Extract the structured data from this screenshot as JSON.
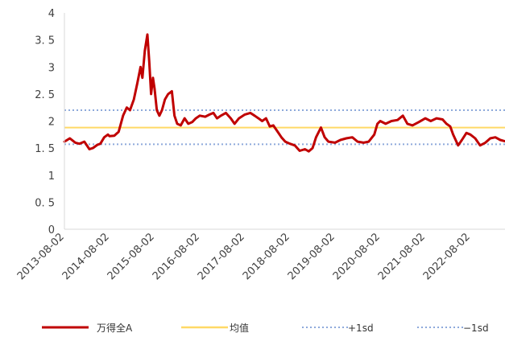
{
  "colors": {
    "series": "#C00000",
    "mean": "#FFD966",
    "plus_sd": "#8EA9DB",
    "minus_sd": "#8EA9DB",
    "axis": "#D9D9D9",
    "text": "#404040"
  },
  "chart_data": {
    "type": "line",
    "title": "",
    "xlabel": "",
    "ylabel": "",
    "ylim": [
      0,
      4
    ],
    "yticks": [
      "0",
      "0. 5",
      "1",
      "1. 5",
      "2",
      "2. 5",
      "3",
      "3. 5",
      "4"
    ],
    "xticks": [
      "2013-08-02",
      "2014-08-02",
      "2015-08-02",
      "2016-08-02",
      "2017-08-02",
      "2018-08-02",
      "2019-08-02",
      "2020-08-02",
      "2021-08-02",
      "2022-08-02"
    ],
    "xlim": [
      "2013-08-02",
      "2023-08-02"
    ],
    "grid": false,
    "legend_position": "bottom",
    "legend": [
      "万得全A",
      "均值",
      "+1sd",
      "−1sd"
    ],
    "reference_lines": [
      {
        "name": "均值",
        "value": 1.88,
        "style": "solid"
      },
      {
        "name": "+1sd",
        "value": 2.2,
        "style": "dotted"
      },
      {
        "name": "−1sd",
        "value": 1.57,
        "style": "dotted"
      }
    ],
    "series": [
      {
        "name": "万得全A",
        "points": [
          [
            "2013-08-02",
            1.62
          ],
          [
            "2013-09-15",
            1.68
          ],
          [
            "2013-10-30",
            1.6
          ],
          [
            "2013-12-01",
            1.58
          ],
          [
            "2014-01-10",
            1.62
          ],
          [
            "2014-02-20",
            1.48
          ],
          [
            "2014-03-20",
            1.5
          ],
          [
            "2014-04-25",
            1.56
          ],
          [
            "2014-05-20",
            1.58
          ],
          [
            "2014-06-20",
            1.7
          ],
          [
            "2014-07-20",
            1.75
          ],
          [
            "2014-08-02",
            1.72
          ],
          [
            "2014-09-10",
            1.73
          ],
          [
            "2014-10-15",
            1.8
          ],
          [
            "2014-11-20",
            2.1
          ],
          [
            "2014-12-20",
            2.25
          ],
          [
            "2015-01-15",
            2.2
          ],
          [
            "2015-02-15",
            2.4
          ],
          [
            "2015-03-15",
            2.7
          ],
          [
            "2015-04-10",
            3.0
          ],
          [
            "2015-04-25",
            2.8
          ],
          [
            "2015-05-15",
            3.3
          ],
          [
            "2015-06-05",
            3.6
          ],
          [
            "2015-06-20",
            3.1
          ],
          [
            "2015-07-05",
            2.5
          ],
          [
            "2015-07-20",
            2.8
          ],
          [
            "2015-08-02",
            2.6
          ],
          [
            "2015-08-20",
            2.2
          ],
          [
            "2015-09-10",
            2.1
          ],
          [
            "2015-10-01",
            2.2
          ],
          [
            "2015-10-25",
            2.4
          ],
          [
            "2015-11-20",
            2.5
          ],
          [
            "2015-12-20",
            2.55
          ],
          [
            "2016-01-10",
            2.1
          ],
          [
            "2016-02-01",
            1.95
          ],
          [
            "2016-03-01",
            1.92
          ],
          [
            "2016-04-01",
            2.05
          ],
          [
            "2016-05-01",
            1.95
          ],
          [
            "2016-06-01",
            1.98
          ],
          [
            "2016-07-01",
            2.05
          ],
          [
            "2016-08-02",
            2.1
          ],
          [
            "2016-09-15",
            2.08
          ],
          [
            "2016-10-20",
            2.12
          ],
          [
            "2016-11-20",
            2.15
          ],
          [
            "2016-12-20",
            2.05
          ],
          [
            "2017-01-20",
            2.1
          ],
          [
            "2017-03-01",
            2.15
          ],
          [
            "2017-04-10",
            2.05
          ],
          [
            "2017-05-10",
            1.95
          ],
          [
            "2017-06-15",
            2.05
          ],
          [
            "2017-08-02",
            2.12
          ],
          [
            "2017-09-15",
            2.15
          ],
          [
            "2017-10-20",
            2.1
          ],
          [
            "2017-11-20",
            2.05
          ],
          [
            "2017-12-20",
            2.0
          ],
          [
            "2018-01-20",
            2.05
          ],
          [
            "2018-02-20",
            1.9
          ],
          [
            "2018-03-20",
            1.92
          ],
          [
            "2018-04-25",
            1.8
          ],
          [
            "2018-05-25",
            1.7
          ],
          [
            "2018-06-25",
            1.62
          ],
          [
            "2018-08-02",
            1.58
          ],
          [
            "2018-09-10",
            1.55
          ],
          [
            "2018-10-20",
            1.45
          ],
          [
            "2018-12-01",
            1.48
          ],
          [
            "2019-01-01",
            1.44
          ],
          [
            "2019-02-01",
            1.5
          ],
          [
            "2019-03-01",
            1.7
          ],
          [
            "2019-04-10",
            1.88
          ],
          [
            "2019-05-10",
            1.7
          ],
          [
            "2019-06-10",
            1.62
          ],
          [
            "2019-08-02",
            1.6
          ],
          [
            "2019-09-15",
            1.65
          ],
          [
            "2019-11-01",
            1.68
          ],
          [
            "2019-12-20",
            1.7
          ],
          [
            "2020-02-01",
            1.62
          ],
          [
            "2020-03-20",
            1.6
          ],
          [
            "2020-05-01",
            1.62
          ],
          [
            "2020-06-15",
            1.75
          ],
          [
            "2020-07-10",
            1.95
          ],
          [
            "2020-08-02",
            2.0
          ],
          [
            "2020-09-15",
            1.95
          ],
          [
            "2020-11-01",
            2.0
          ],
          [
            "2020-12-20",
            2.02
          ],
          [
            "2021-02-01",
            2.1
          ],
          [
            "2021-03-10",
            1.95
          ],
          [
            "2021-04-20",
            1.92
          ],
          [
            "2021-06-10",
            1.98
          ],
          [
            "2021-08-02",
            2.05
          ],
          [
            "2021-09-15",
            2.0
          ],
          [
            "2021-11-01",
            2.05
          ],
          [
            "2021-12-20",
            2.03
          ],
          [
            "2022-01-20",
            1.95
          ],
          [
            "2022-02-20",
            1.9
          ],
          [
            "2022-03-15",
            1.75
          ],
          [
            "2022-04-25",
            1.55
          ],
          [
            "2022-05-25",
            1.65
          ],
          [
            "2022-07-01",
            1.78
          ],
          [
            "2022-08-02",
            1.75
          ],
          [
            "2022-09-10",
            1.68
          ],
          [
            "2022-10-20",
            1.55
          ],
          [
            "2022-12-01",
            1.6
          ],
          [
            "2023-01-10",
            1.68
          ],
          [
            "2023-02-20",
            1.7
          ],
          [
            "2023-04-01",
            1.65
          ],
          [
            "2023-05-20",
            1.62
          ],
          [
            "2023-07-01",
            1.6
          ],
          [
            "2023-08-02",
            1.62
          ]
        ]
      }
    ]
  }
}
